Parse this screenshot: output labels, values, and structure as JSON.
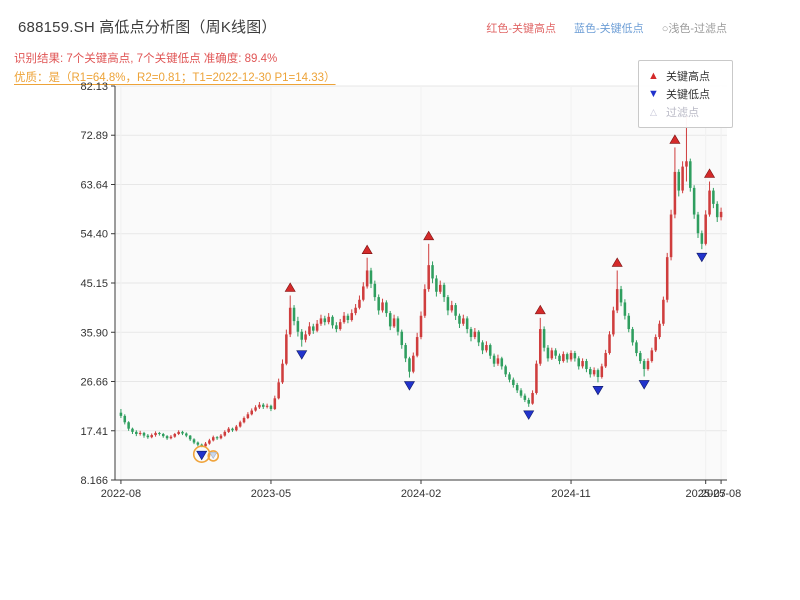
{
  "header": {
    "title": "688159.SH 高低点分析图（周K线图）",
    "legend_top": [
      {
        "label": "红色-关键高点",
        "color": "#e06666"
      },
      {
        "label": "蓝色-关键低点",
        "color": "#6d9ed6"
      },
      {
        "label": "○浅色-过滤点",
        "color": "#9a9a9a"
      }
    ],
    "result_line": "识别结果: 7个关键高点, 7个关键低点  准确度: 89.4%",
    "quality_line": "优质：是（R1=64.8%，R2=0.81；T1=2022-12-30 P1=14.33）",
    "stats": {
      "key_high_count": 7,
      "key_low_count": 7,
      "accuracy": "89.4%",
      "R1": "64.8%",
      "R2": "0.81",
      "T1": "2022-12-30",
      "P1": "14.33"
    }
  },
  "legend_box": {
    "items": [
      {
        "label": "关键高点",
        "glyph": "▲",
        "color": "#d42a2a"
      },
      {
        "label": "关键低点",
        "glyph": "▼",
        "color": "#2133cc"
      },
      {
        "label": "过滤点",
        "glyph": "△",
        "color": "#c3c3d6"
      }
    ]
  },
  "chart_data": {
    "type": "candlestick",
    "title": "688159.SH 高低点分析图（周K线图）",
    "xlabel": "",
    "ylabel": "",
    "ylim": [
      8.166,
      82.13
    ],
    "grid": "horizontal",
    "up_color": "#cf3d3d",
    "down_color": "#2f9e5f",
    "key_high_color": "#d42a2a",
    "key_low_color": "#2133cc",
    "highlight_ring_color": "#f0a43c",
    "y_tick_labels": [
      "8.166",
      "17.41",
      "26.66",
      "35.90",
      "45.15",
      "54.40",
      "63.64",
      "72.89",
      "82.13"
    ],
    "y_ticks": [
      8.166,
      17.41,
      26.66,
      35.9,
      45.15,
      54.4,
      63.64,
      72.89,
      82.13
    ],
    "x_ticks": [
      {
        "week": 0,
        "label": "2022-08"
      },
      {
        "week": 39,
        "label": "2023-05"
      },
      {
        "week": 78,
        "label": "2024-02"
      },
      {
        "week": 117,
        "label": "2024-11"
      },
      {
        "week": 152,
        "label": "2025-07"
      },
      {
        "week": 156,
        "label": "2025-08"
      }
    ],
    "ohlc_format": [
      "open",
      "high",
      "low",
      "close"
    ],
    "ohlc": [
      [
        20.8,
        21.5,
        19.8,
        20.2
      ],
      [
        20.2,
        20.5,
        18.6,
        19.0
      ],
      [
        19.0,
        19.2,
        17.4,
        17.8
      ],
      [
        17.8,
        18.0,
        16.8,
        17.2
      ],
      [
        17.2,
        17.5,
        16.4,
        16.8
      ],
      [
        16.8,
        17.4,
        16.5,
        17.0
      ],
      [
        17.0,
        17.2,
        16.1,
        16.5
      ],
      [
        16.5,
        16.8,
        15.9,
        16.2
      ],
      [
        16.2,
        16.9,
        16.0,
        16.6
      ],
      [
        16.6,
        17.3,
        16.3,
        17.0
      ],
      [
        17.0,
        17.2,
        16.5,
        16.8
      ],
      [
        16.8,
        17.0,
        16.1,
        16.4
      ],
      [
        16.4,
        16.6,
        15.7,
        16.0
      ],
      [
        16.0,
        16.6,
        15.8,
        16.3
      ],
      [
        16.3,
        17.0,
        16.1,
        16.8
      ],
      [
        16.8,
        17.5,
        16.6,
        17.2
      ],
      [
        17.2,
        17.4,
        16.6,
        16.9
      ],
      [
        16.9,
        17.1,
        16.2,
        16.5
      ],
      [
        16.5,
        16.6,
        15.5,
        15.8
      ],
      [
        15.8,
        16.0,
        14.9,
        15.2
      ],
      [
        15.2,
        15.4,
        14.5,
        14.8
      ],
      [
        14.8,
        15.0,
        14.33,
        14.5
      ],
      [
        14.5,
        15.3,
        14.4,
        15.0
      ],
      [
        15.0,
        15.9,
        14.8,
        15.6
      ],
      [
        15.6,
        16.5,
        15.4,
        16.2
      ],
      [
        16.2,
        16.4,
        15.7,
        16.0
      ],
      [
        16.0,
        16.8,
        15.8,
        16.5
      ],
      [
        16.5,
        17.5,
        16.3,
        17.2
      ],
      [
        17.2,
        18.1,
        17.0,
        17.8
      ],
      [
        17.8,
        18.0,
        17.2,
        17.5
      ],
      [
        17.5,
        18.5,
        17.3,
        18.2
      ],
      [
        18.2,
        19.3,
        18.0,
        19.0
      ],
      [
        19.0,
        20.1,
        18.8,
        19.8
      ],
      [
        19.8,
        20.9,
        19.6,
        20.5
      ],
      [
        20.5,
        21.6,
        20.3,
        21.2
      ],
      [
        21.2,
        22.2,
        21.0,
        21.8
      ],
      [
        21.8,
        22.8,
        21.5,
        22.3
      ],
      [
        22.3,
        22.6,
        21.5,
        21.9
      ],
      [
        21.9,
        22.5,
        21.6,
        22.1
      ],
      [
        22.1,
        22.3,
        21.1,
        21.5
      ],
      [
        21.5,
        24.0,
        21.3,
        23.5
      ],
      [
        23.5,
        27.2,
        23.3,
        26.5
      ],
      [
        26.5,
        30.8,
        26.2,
        30.0
      ],
      [
        30.0,
        36.4,
        29.7,
        35.5
      ],
      [
        35.5,
        42.8,
        35.0,
        40.5
      ],
      [
        40.5,
        41.0,
        37.2,
        38.0
      ],
      [
        38.0,
        38.8,
        35.1,
        36.0
      ],
      [
        36.0,
        36.5,
        33.2,
        34.5
      ],
      [
        34.5,
        36.2,
        34.0,
        35.5
      ],
      [
        35.5,
        37.8,
        35.2,
        37.0
      ],
      [
        37.0,
        37.5,
        35.6,
        36.2
      ],
      [
        36.2,
        38.2,
        35.9,
        37.5
      ],
      [
        37.5,
        39.2,
        37.1,
        38.5
      ],
      [
        38.5,
        39.0,
        37.2,
        37.8
      ],
      [
        37.8,
        39.5,
        37.4,
        38.8
      ],
      [
        38.8,
        39.1,
        36.6,
        37.2
      ],
      [
        37.2,
        37.8,
        35.9,
        36.5
      ],
      [
        36.5,
        38.4,
        36.2,
        37.8
      ],
      [
        37.8,
        39.7,
        37.5,
        39.0
      ],
      [
        39.0,
        39.4,
        37.6,
        38.2
      ],
      [
        38.2,
        40.2,
        37.9,
        39.5
      ],
      [
        39.5,
        41.2,
        39.1,
        40.5
      ],
      [
        40.5,
        42.8,
        40.2,
        42.0
      ],
      [
        42.0,
        45.3,
        41.7,
        44.5
      ],
      [
        44.5,
        49.9,
        44.1,
        47.5
      ],
      [
        47.5,
        48.0,
        44.2,
        45.0
      ],
      [
        45.0,
        45.6,
        41.8,
        42.5
      ],
      [
        42.5,
        43.0,
        39.2,
        40.0
      ],
      [
        40.0,
        42.2,
        39.6,
        41.5
      ],
      [
        41.5,
        41.9,
        38.8,
        39.5
      ],
      [
        39.5,
        39.9,
        36.3,
        37.0
      ],
      [
        37.0,
        39.2,
        36.7,
        38.5
      ],
      [
        38.5,
        38.9,
        35.3,
        36.0
      ],
      [
        36.0,
        36.4,
        32.8,
        33.5
      ],
      [
        33.5,
        33.9,
        30.3,
        31.0
      ],
      [
        31.0,
        31.3,
        27.4,
        28.5
      ],
      [
        28.5,
        32.1,
        28.2,
        31.5
      ],
      [
        31.5,
        35.8,
        31.2,
        35.0
      ],
      [
        35.0,
        39.8,
        34.6,
        39.0
      ],
      [
        39.0,
        44.9,
        38.6,
        44.0
      ],
      [
        44.0,
        52.5,
        43.5,
        48.5
      ],
      [
        48.5,
        49.2,
        45.1,
        46.0
      ],
      [
        46.0,
        46.6,
        42.6,
        43.5
      ],
      [
        43.5,
        45.6,
        43.1,
        44.8
      ],
      [
        44.8,
        45.2,
        41.6,
        42.5
      ],
      [
        42.5,
        42.9,
        39.1,
        40.0
      ],
      [
        40.0,
        41.8,
        39.6,
        41.0
      ],
      [
        41.0,
        41.4,
        38.2,
        39.0
      ],
      [
        39.0,
        39.4,
        36.7,
        37.5
      ],
      [
        37.5,
        39.2,
        37.1,
        38.5
      ],
      [
        38.5,
        38.9,
        35.7,
        36.5
      ],
      [
        36.5,
        36.9,
        34.2,
        35.0
      ],
      [
        35.0,
        36.7,
        34.6,
        36.0
      ],
      [
        36.0,
        36.3,
        33.3,
        34.0
      ],
      [
        34.0,
        34.4,
        31.8,
        32.5
      ],
      [
        32.5,
        34.2,
        32.1,
        33.5
      ],
      [
        33.5,
        33.8,
        30.9,
        31.5
      ],
      [
        31.5,
        31.9,
        29.4,
        30.0
      ],
      [
        30.0,
        31.7,
        29.6,
        31.0
      ],
      [
        31.0,
        31.3,
        28.9,
        29.5
      ],
      [
        29.5,
        29.8,
        27.5,
        28.0
      ],
      [
        28.0,
        28.4,
        26.5,
        27.0
      ],
      [
        27.0,
        27.4,
        25.5,
        26.0
      ],
      [
        26.0,
        26.4,
        24.5,
        25.0
      ],
      [
        25.0,
        25.4,
        23.6,
        24.0
      ],
      [
        24.0,
        24.4,
        22.8,
        23.2
      ],
      [
        23.2,
        23.6,
        21.9,
        22.5
      ],
      [
        22.5,
        25.0,
        22.3,
        24.5
      ],
      [
        24.5,
        30.6,
        24.2,
        30.0
      ],
      [
        30.0,
        38.6,
        29.6,
        36.5
      ],
      [
        36.5,
        37.0,
        32.3,
        33.0
      ],
      [
        33.0,
        33.5,
        30.4,
        31.0
      ],
      [
        31.0,
        33.0,
        30.7,
        32.5
      ],
      [
        32.5,
        32.9,
        30.9,
        31.5
      ],
      [
        31.5,
        31.9,
        29.9,
        30.5
      ],
      [
        30.5,
        32.3,
        30.2,
        31.8
      ],
      [
        31.8,
        32.1,
        30.2,
        30.8
      ],
      [
        30.8,
        32.5,
        30.4,
        32.0
      ],
      [
        32.0,
        32.4,
        30.4,
        31.0
      ],
      [
        31.0,
        31.4,
        28.9,
        29.5
      ],
      [
        29.5,
        31.0,
        29.1,
        30.5
      ],
      [
        30.5,
        30.9,
        28.4,
        29.0
      ],
      [
        29.0,
        29.4,
        27.4,
        28.0
      ],
      [
        28.0,
        29.3,
        27.6,
        28.8
      ],
      [
        28.8,
        29.1,
        26.5,
        27.5
      ],
      [
        27.5,
        30.0,
        27.2,
        29.5
      ],
      [
        29.5,
        32.6,
        29.2,
        32.0
      ],
      [
        32.0,
        36.1,
        31.7,
        35.5
      ],
      [
        35.5,
        40.7,
        35.1,
        40.0
      ],
      [
        40.0,
        47.5,
        39.5,
        44.0
      ],
      [
        44.0,
        44.6,
        40.8,
        41.5
      ],
      [
        41.5,
        42.1,
        38.3,
        39.0
      ],
      [
        39.0,
        39.5,
        35.9,
        36.5
      ],
      [
        36.5,
        36.9,
        33.4,
        34.0
      ],
      [
        34.0,
        34.4,
        31.4,
        32.0
      ],
      [
        32.0,
        32.4,
        30.0,
        30.5
      ],
      [
        30.5,
        30.9,
        27.6,
        29.0
      ],
      [
        29.0,
        31.0,
        28.7,
        30.5
      ],
      [
        30.5,
        33.0,
        30.2,
        32.5
      ],
      [
        32.5,
        35.5,
        32.2,
        35.0
      ],
      [
        35.0,
        38.1,
        34.6,
        37.5
      ],
      [
        37.5,
        42.6,
        37.1,
        42.0
      ],
      [
        42.0,
        50.8,
        41.5,
        50.0
      ],
      [
        50.0,
        58.9,
        49.4,
        58.0
      ],
      [
        58.0,
        70.6,
        57.3,
        66.0
      ],
      [
        66.0,
        66.5,
        61.4,
        62.5
      ],
      [
        62.5,
        68.0,
        62.0,
        67.0
      ],
      [
        67.0,
        76.5,
        64.2,
        68.0
      ],
      [
        68.0,
        68.5,
        62.3,
        63.0
      ],
      [
        63.0,
        63.5,
        57.2,
        58.0
      ],
      [
        58.0,
        58.5,
        53.6,
        54.5
      ],
      [
        54.5,
        55.0,
        51.5,
        52.5
      ],
      [
        52.5,
        58.8,
        52.2,
        58.0
      ],
      [
        58.0,
        64.2,
        57.6,
        62.5
      ],
      [
        62.5,
        63.0,
        59.2,
        60.0
      ],
      [
        60.0,
        60.5,
        56.6,
        57.5
      ],
      [
        57.5,
        59.3,
        56.9,
        58.5
      ]
    ],
    "key_highs": [
      {
        "week": 44,
        "value": 42.8
      },
      {
        "week": 64,
        "value": 49.9
      },
      {
        "week": 80,
        "value": 52.5
      },
      {
        "week": 109,
        "value": 38.6
      },
      {
        "week": 129,
        "value": 47.5
      },
      {
        "week": 144,
        "value": 70.6
      },
      {
        "week": 153,
        "value": 64.2
      }
    ],
    "key_lows": [
      {
        "week": 21,
        "value": 14.33
      },
      {
        "week": 47,
        "value": 33.2
      },
      {
        "week": 75,
        "value": 27.4
      },
      {
        "week": 106,
        "value": 21.9
      },
      {
        "week": 124,
        "value": 26.5
      },
      {
        "week": 136,
        "value": 27.6
      },
      {
        "week": 151,
        "value": 51.5
      }
    ],
    "filtered_points": [
      {
        "week": 24,
        "value": 14.0
      }
    ],
    "highlight_rings": [
      {
        "week": 21,
        "value": 14.33,
        "r": 8
      },
      {
        "week": 24,
        "value": 14.0,
        "r": 5
      }
    ],
    "legend_position": "upper-right"
  }
}
